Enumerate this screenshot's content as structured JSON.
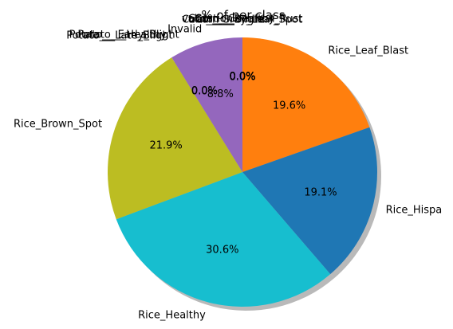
{
  "chart_data": {
    "type": "pie",
    "title": "% of per class",
    "start_angle_deg": 90,
    "direction": "clockwise",
    "shadow": true,
    "slices": [
      {
        "label": "Rice_Leaf_Blast",
        "value": 19.6,
        "pct_label": "19.6%",
        "color": "#ff7f0e"
      },
      {
        "label": "Rice_Hispa",
        "value": 19.1,
        "pct_label": "19.1%",
        "color": "#1f77b4"
      },
      {
        "label": "Rice_Healthy",
        "value": 30.6,
        "pct_label": "30.6%",
        "color": "#17becf"
      },
      {
        "label": "Rice_Brown_Spot",
        "value": 21.9,
        "pct_label": "21.9%",
        "color": "#bcbd22"
      },
      {
        "label": "Invalid",
        "value": 8.8,
        "pct_label": "8.8%",
        "color": "#9467bd"
      }
    ],
    "zero_label_groups": [
      {
        "side": "top-right",
        "labels": [
          "validation",
          "train",
          "Corn___Healthy",
          "Corn___Gray_Leaf_Spot",
          "Corn___Common_Rust",
          "Corn___Blight"
        ],
        "pct_labels": [
          "0.0%",
          "0.0%",
          "0.0%",
          "0.0%",
          "0.0%",
          "0.0%"
        ]
      },
      {
        "side": "top-left",
        "labels": [
          "Potato___Healthy",
          "Potato___Late_Blight",
          "Potato___Early_Blight"
        ],
        "pct_labels": [
          "0.0%",
          "0.0%",
          "0.0%"
        ]
      }
    ]
  }
}
